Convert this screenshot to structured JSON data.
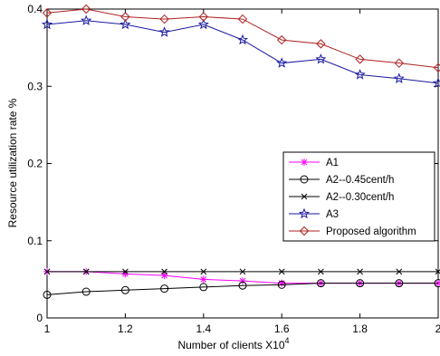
{
  "chart_data": {
    "type": "line",
    "xlabel": "Number of clients",
    "xlabel_suffix": "X10",
    "xlabel_exponent": "4",
    "ylabel": "Resource utilization rate  %",
    "xlim": [
      1,
      2
    ],
    "ylim": [
      0,
      0.4
    ],
    "xticks": [
      1,
      1.2,
      1.4,
      1.6,
      1.8,
      2
    ],
    "xtick_labels": [
      "1",
      "1.2",
      "1.4",
      "1.6",
      "1.8",
      "2"
    ],
    "yticks": [
      0,
      0.1,
      0.2,
      0.3,
      0.4
    ],
    "ytick_labels": [
      "0",
      "0.1",
      "0.2",
      "0.3",
      "0.4"
    ],
    "grid": false,
    "legend_position": "center-right",
    "x": [
      1.0,
      1.1,
      1.2,
      1.3,
      1.4,
      1.5,
      1.6,
      1.7,
      1.8,
      1.9,
      2.0
    ],
    "series": [
      {
        "name": "A1",
        "color": "#ff00ff",
        "marker": "asterisk",
        "values": [
          0.06,
          0.06,
          0.057,
          0.055,
          0.05,
          0.048,
          0.045,
          0.045,
          0.045,
          0.045,
          0.045
        ]
      },
      {
        "name": "A2--0.45cent/h",
        "color": "#000000",
        "marker": "circle",
        "values": [
          0.03,
          0.034,
          0.036,
          0.038,
          0.04,
          0.042,
          0.043,
          0.045,
          0.045,
          0.045,
          0.045
        ]
      },
      {
        "name": "A2--0.30cent/h",
        "color": "#000000",
        "marker": "x",
        "values": [
          0.06,
          0.06,
          0.06,
          0.06,
          0.06,
          0.06,
          0.06,
          0.06,
          0.06,
          0.06,
          0.06
        ]
      },
      {
        "name": "A3",
        "color": "#1a1aa0",
        "marker": "star",
        "values": [
          0.38,
          0.385,
          0.38,
          0.37,
          0.38,
          0.36,
          0.33,
          0.335,
          0.315,
          0.31,
          0.304
        ]
      },
      {
        "name": "Proposed algorithm",
        "color": "#b02020",
        "marker": "diamond",
        "values": [
          0.395,
          0.4,
          0.39,
          0.387,
          0.39,
          0.387,
          0.36,
          0.355,
          0.335,
          0.33,
          0.324
        ]
      }
    ]
  }
}
